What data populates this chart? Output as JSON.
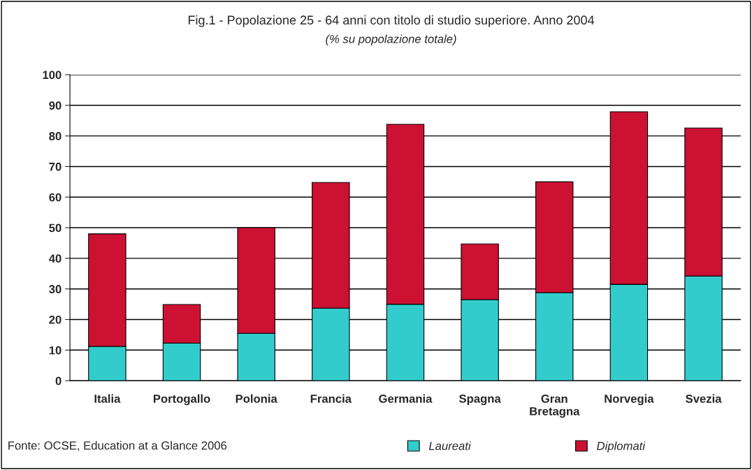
{
  "chart_data": {
    "type": "bar",
    "stacked": true,
    "title": "Fig.1 - Popolazione 25 - 64 anni con titolo di studio superiore. Anno 2004",
    "subtitle": "(% su popolazione totale)",
    "categories": [
      "Italia",
      "Portogallo",
      "Polonia",
      "Francia",
      "Germania",
      "Spagna",
      "Gran\nBretagna",
      "Norvegia",
      "Svezia"
    ],
    "series": [
      {
        "name": "Laureati",
        "color": "#33cccc",
        "values": [
          11.2,
          12.3,
          15.5,
          23.7,
          25,
          26.5,
          28.8,
          31.5,
          34.2
        ]
      },
      {
        "name": "Diplomati",
        "color": "#cc1133",
        "values": [
          36.8,
          12.6,
          34.5,
          41.1,
          58.8,
          18.2,
          36.2,
          56.4,
          48.4
        ]
      }
    ],
    "ylim": [
      0,
      100
    ],
    "yticks": [
      0,
      10,
      20,
      30,
      40,
      50,
      60,
      70,
      80,
      90,
      100
    ],
    "grid": "y",
    "legend": "bottom",
    "annotations": [
      "Fonte: OCSE, Education at a Glance 2006"
    ]
  }
}
